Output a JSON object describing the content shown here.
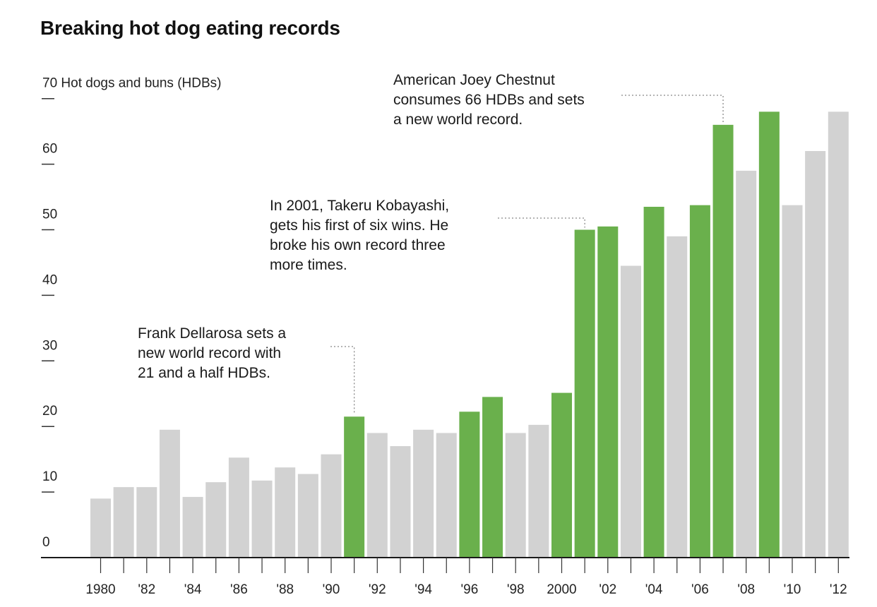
{
  "chart_data": {
    "type": "bar",
    "title": "Breaking hot dog eating records",
    "ylabel": "Hot dogs and buns (HDBs)",
    "ylim": [
      0,
      70
    ],
    "yticks": [
      0,
      10,
      20,
      30,
      40,
      50,
      60,
      70
    ],
    "x": [
      1980,
      1981,
      1982,
      1983,
      1984,
      1985,
      1986,
      1987,
      1988,
      1989,
      1990,
      1991,
      1992,
      1993,
      1994,
      1995,
      1996,
      1997,
      1998,
      1999,
      2000,
      2001,
      2002,
      2003,
      2004,
      2005,
      2006,
      2007,
      2008,
      2009,
      2010,
      2011,
      2012
    ],
    "values": [
      9,
      10.75,
      10.75,
      19.5,
      9.25,
      11.5,
      15.25,
      11.75,
      13.75,
      12.75,
      15.75,
      21.5,
      19,
      17,
      19.5,
      19,
      22.25,
      24.5,
      19,
      20.25,
      25.125,
      50,
      50.5,
      44.5,
      53.5,
      49,
      53.75,
      66,
      59,
      68,
      53.75,
      62,
      68
    ],
    "record": [
      false,
      false,
      false,
      false,
      false,
      false,
      false,
      false,
      false,
      false,
      false,
      true,
      false,
      false,
      false,
      false,
      true,
      true,
      false,
      false,
      true,
      true,
      true,
      false,
      true,
      false,
      true,
      true,
      false,
      true,
      false,
      false,
      false
    ],
    "xtick_labels": [
      "1980",
      "'82",
      "'84",
      "'86",
      "'88",
      "'90",
      "'92",
      "'94",
      "'96",
      "'98",
      "2000",
      "'02",
      "'04",
      "'06",
      "'08",
      "'10",
      "'12"
    ],
    "xtick_years": [
      1980,
      1982,
      1984,
      1986,
      1988,
      1990,
      1992,
      1994,
      1996,
      1998,
      2000,
      2002,
      2004,
      2006,
      2008,
      2010,
      2012
    ],
    "colors": {
      "record": "#6ab04c",
      "normal": "#d2d2d2",
      "axis": "#1a1a1a",
      "leader": "#888888"
    },
    "annotations": [
      {
        "year": 1991,
        "text": [
          "Frank Dellarosa sets a",
          "new world record with",
          "21 and a half HDBs."
        ]
      },
      {
        "year": 2001,
        "text": [
          "In 2001, Takeru Kobayashi,",
          "gets his first of six wins. He",
          "broke his own record three",
          "more times."
        ]
      },
      {
        "year": 2007,
        "text": [
          "American Joey Chestnut",
          "consumes 66 HDBs and sets",
          "a new world record."
        ]
      }
    ]
  }
}
